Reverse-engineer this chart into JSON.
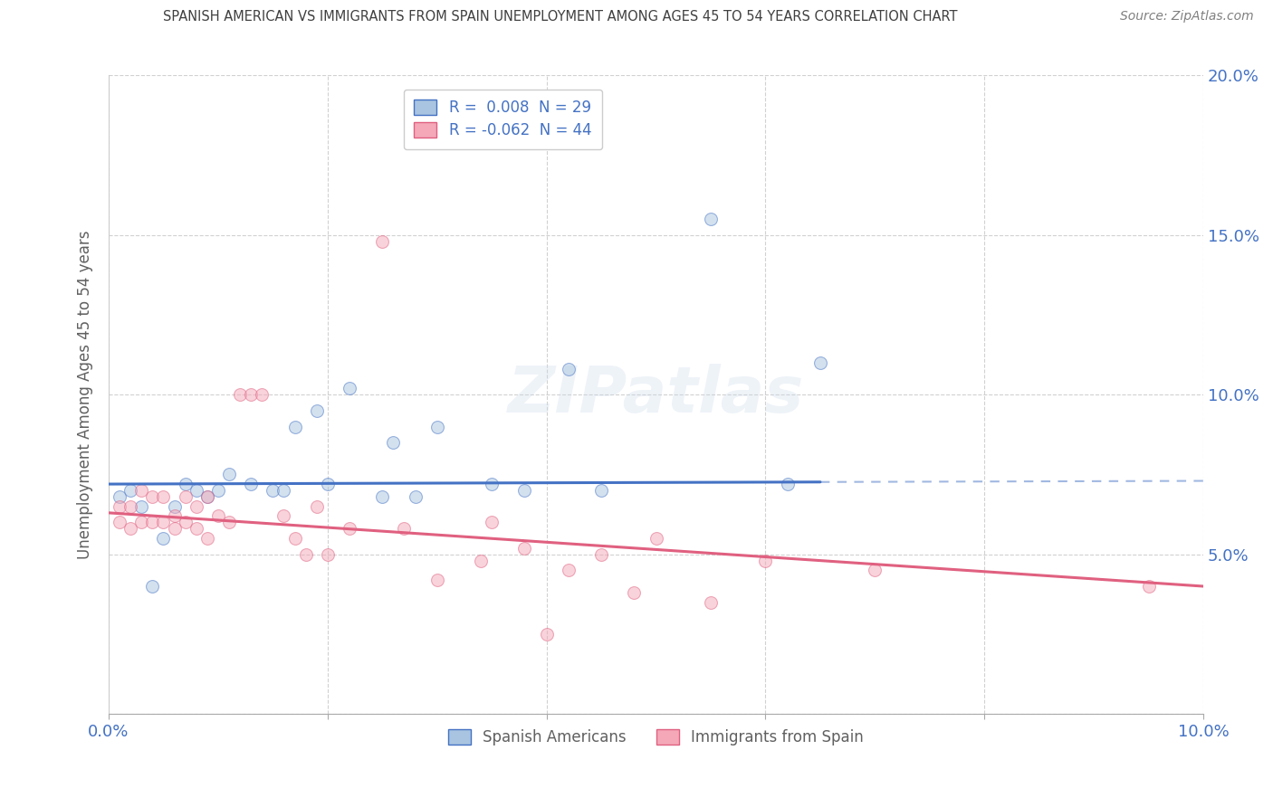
{
  "title": "SPANISH AMERICAN VS IMMIGRANTS FROM SPAIN UNEMPLOYMENT AMONG AGES 45 TO 54 YEARS CORRELATION CHART",
  "source": "Source: ZipAtlas.com",
  "ylabel": "Unemployment Among Ages 45 to 54 years",
  "xlim": [
    0.0,
    0.1
  ],
  "ylim": [
    0.0,
    0.2
  ],
  "xticks": [
    0.0,
    0.02,
    0.04,
    0.06,
    0.08,
    0.1
  ],
  "yticks": [
    0.0,
    0.05,
    0.1,
    0.15,
    0.2
  ],
  "xtick_labels": [
    "0.0%",
    "",
    "",
    "",
    "",
    "10.0%"
  ],
  "ytick_labels": [
    "",
    "5.0%",
    "10.0%",
    "15.0%",
    "20.0%"
  ],
  "blue_R": 0.008,
  "blue_N": 29,
  "pink_R": -0.062,
  "pink_N": 44,
  "blue_color": "#a8c4e0",
  "pink_color": "#f4a8b8",
  "blue_line_color": "#4472c4",
  "pink_line_color": "#e06080",
  "legend_label_blue": "Spanish Americans",
  "legend_label_pink": "Immigrants from Spain",
  "blue_x": [
    0.001,
    0.002,
    0.003,
    0.004,
    0.005,
    0.006,
    0.007,
    0.008,
    0.009,
    0.01,
    0.011,
    0.013,
    0.015,
    0.016,
    0.017,
    0.019,
    0.02,
    0.022,
    0.025,
    0.026,
    0.028,
    0.03,
    0.035,
    0.038,
    0.042,
    0.045,
    0.055,
    0.062,
    0.065
  ],
  "blue_y": [
    0.068,
    0.07,
    0.065,
    0.04,
    0.055,
    0.065,
    0.072,
    0.07,
    0.068,
    0.07,
    0.075,
    0.072,
    0.07,
    0.07,
    0.09,
    0.095,
    0.072,
    0.102,
    0.068,
    0.085,
    0.068,
    0.09,
    0.072,
    0.07,
    0.108,
    0.07,
    0.155,
    0.072,
    0.11
  ],
  "pink_x": [
    0.001,
    0.001,
    0.002,
    0.002,
    0.003,
    0.003,
    0.004,
    0.004,
    0.005,
    0.005,
    0.006,
    0.006,
    0.007,
    0.007,
    0.008,
    0.008,
    0.009,
    0.009,
    0.01,
    0.011,
    0.012,
    0.013,
    0.014,
    0.016,
    0.017,
    0.018,
    0.019,
    0.02,
    0.022,
    0.025,
    0.027,
    0.03,
    0.034,
    0.035,
    0.038,
    0.04,
    0.042,
    0.045,
    0.048,
    0.05,
    0.055,
    0.06,
    0.07,
    0.095
  ],
  "pink_y": [
    0.06,
    0.065,
    0.058,
    0.065,
    0.06,
    0.07,
    0.06,
    0.068,
    0.06,
    0.068,
    0.058,
    0.062,
    0.06,
    0.068,
    0.058,
    0.065,
    0.055,
    0.068,
    0.062,
    0.06,
    0.1,
    0.1,
    0.1,
    0.062,
    0.055,
    0.05,
    0.065,
    0.05,
    0.058,
    0.148,
    0.058,
    0.042,
    0.048,
    0.06,
    0.052,
    0.025,
    0.045,
    0.05,
    0.038,
    0.055,
    0.035,
    0.048,
    0.045,
    0.04
  ],
  "watermark": "ZIPatlas",
  "grid_color": "#cccccc",
  "background_color": "#ffffff",
  "title_color": "#404040",
  "axis_label_color": "#606060",
  "tick_label_color": "#4472c4",
  "marker_size": 100,
  "marker_alpha": 0.5,
  "blue_line_solid_end": 0.065,
  "blue_line_y_start": 0.072,
  "blue_line_y_end": 0.073,
  "pink_line_y_start": 0.063,
  "pink_line_y_end": 0.04
}
